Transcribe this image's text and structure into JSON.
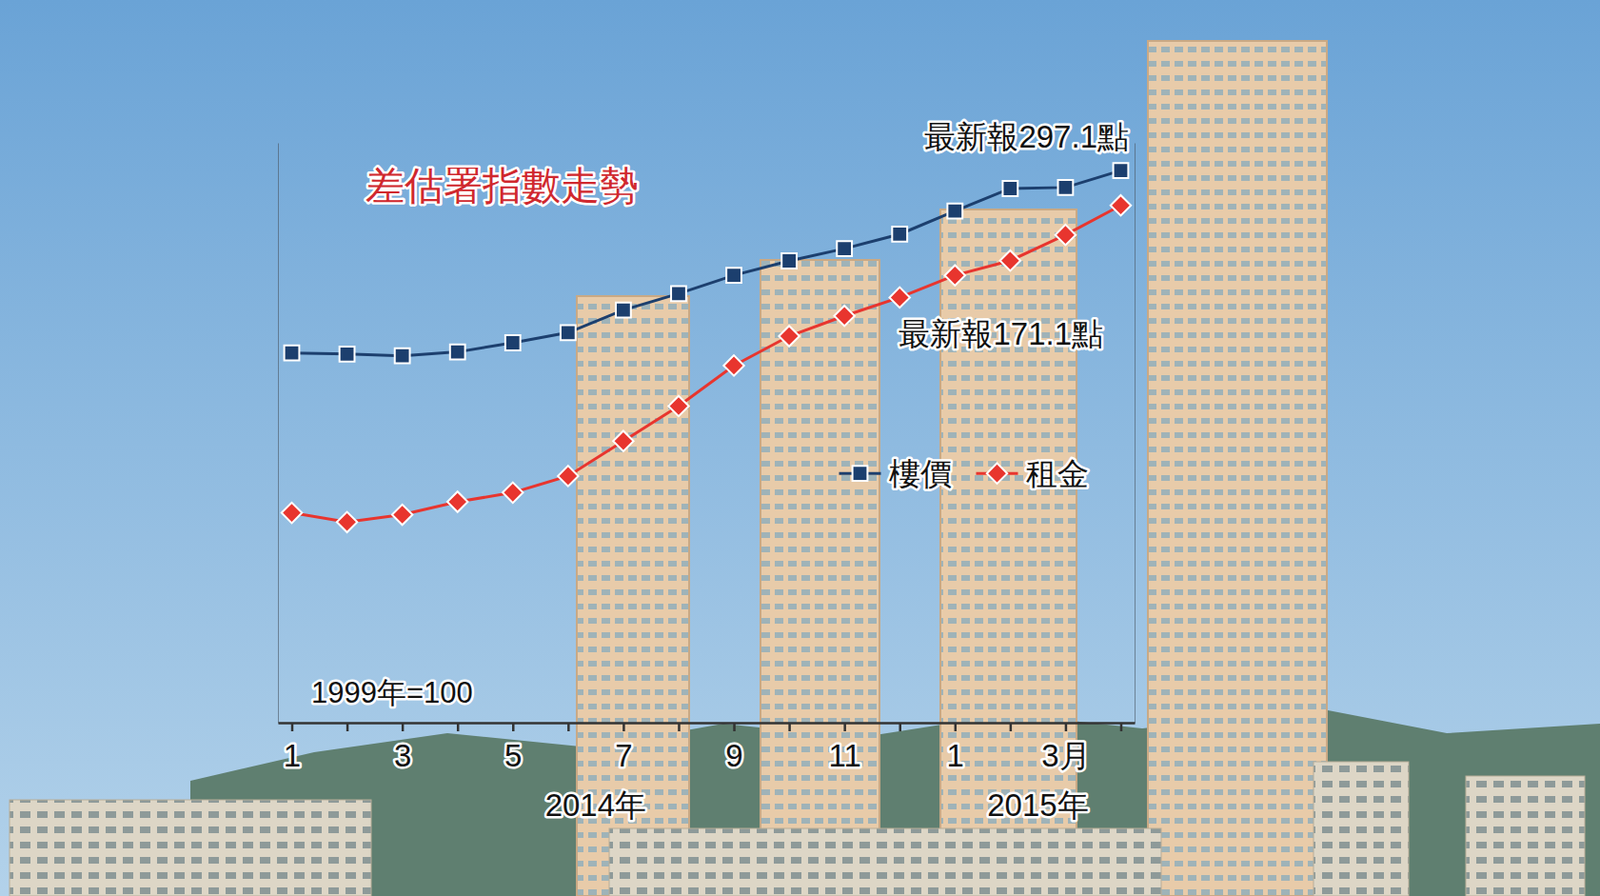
{
  "chart_data": {
    "type": "line",
    "title": "差估署指數走勢",
    "categories": [
      "1",
      null,
      "3",
      null,
      "5",
      null,
      "7",
      null,
      "9",
      null,
      "11",
      null,
      "1",
      null,
      "3月",
      null
    ],
    "x_groups": [
      {
        "label": "2014年",
        "start": 0,
        "end": 11
      },
      {
        "label": "2015年",
        "start": 12,
        "end": 15
      }
    ],
    "series": [
      {
        "name": "樓價",
        "color": "#1c3f6e",
        "marker": "square",
        "values": [
          245.2,
          244.9,
          244.4,
          245.5,
          248.1,
          251.0,
          257.4,
          262.1,
          267.3,
          271.4,
          274.9,
          279.0,
          285.6,
          292.0,
          292.3,
          297.1
        ]
      },
      {
        "name": "租金",
        "color": "#e8352e",
        "marker": "diamond",
        "axis": "y2",
        "values": [
          154.4,
          153.9,
          154.3,
          155.0,
          155.5,
          156.4,
          158.3,
          160.2,
          162.4,
          164.0,
          165.1,
          166.1,
          167.3,
          168.1,
          169.5,
          171.1
        ]
      }
    ],
    "ylim": [
      140,
      305
    ],
    "yticks": [],
    "y2lim": [
      143,
      174.5
    ],
    "y2ticks": [],
    "annotations": [
      {
        "text": "最新報297.1點",
        "series": "樓價"
      },
      {
        "text": "最新報171.1點",
        "series": "租金"
      },
      {
        "text": "1999年=100"
      }
    ],
    "legend": "right",
    "grid": false,
    "tick_labels": "x"
  }
}
